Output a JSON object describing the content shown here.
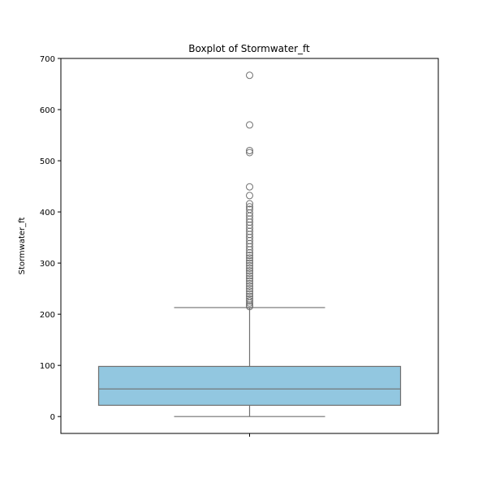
{
  "chart_data": {
    "type": "boxplot",
    "title": "Boxplot of Stormwater_ft",
    "xlabel": "",
    "ylabel": "Stormwater_ft",
    "ylim": [
      -33,
      700
    ],
    "yticks": [
      0,
      100,
      200,
      300,
      400,
      500,
      600,
      700
    ],
    "grid": false,
    "box": {
      "whisker_low": 0,
      "q1": 22,
      "median": 54,
      "q3": 98,
      "whisker_high": 213,
      "color": "#92c7e0",
      "line_color": "#707070"
    },
    "outliers": [
      667,
      570,
      520,
      516,
      449,
      432,
      416,
      410,
      405,
      398,
      392,
      386,
      380,
      374,
      368,
      362,
      356,
      350,
      344,
      338,
      332,
      326,
      320,
      315,
      310,
      305,
      300,
      295,
      290,
      285,
      280,
      275,
      270,
      265,
      260,
      255,
      250,
      245,
      240,
      235,
      230,
      226,
      222,
      218,
      215
    ]
  }
}
